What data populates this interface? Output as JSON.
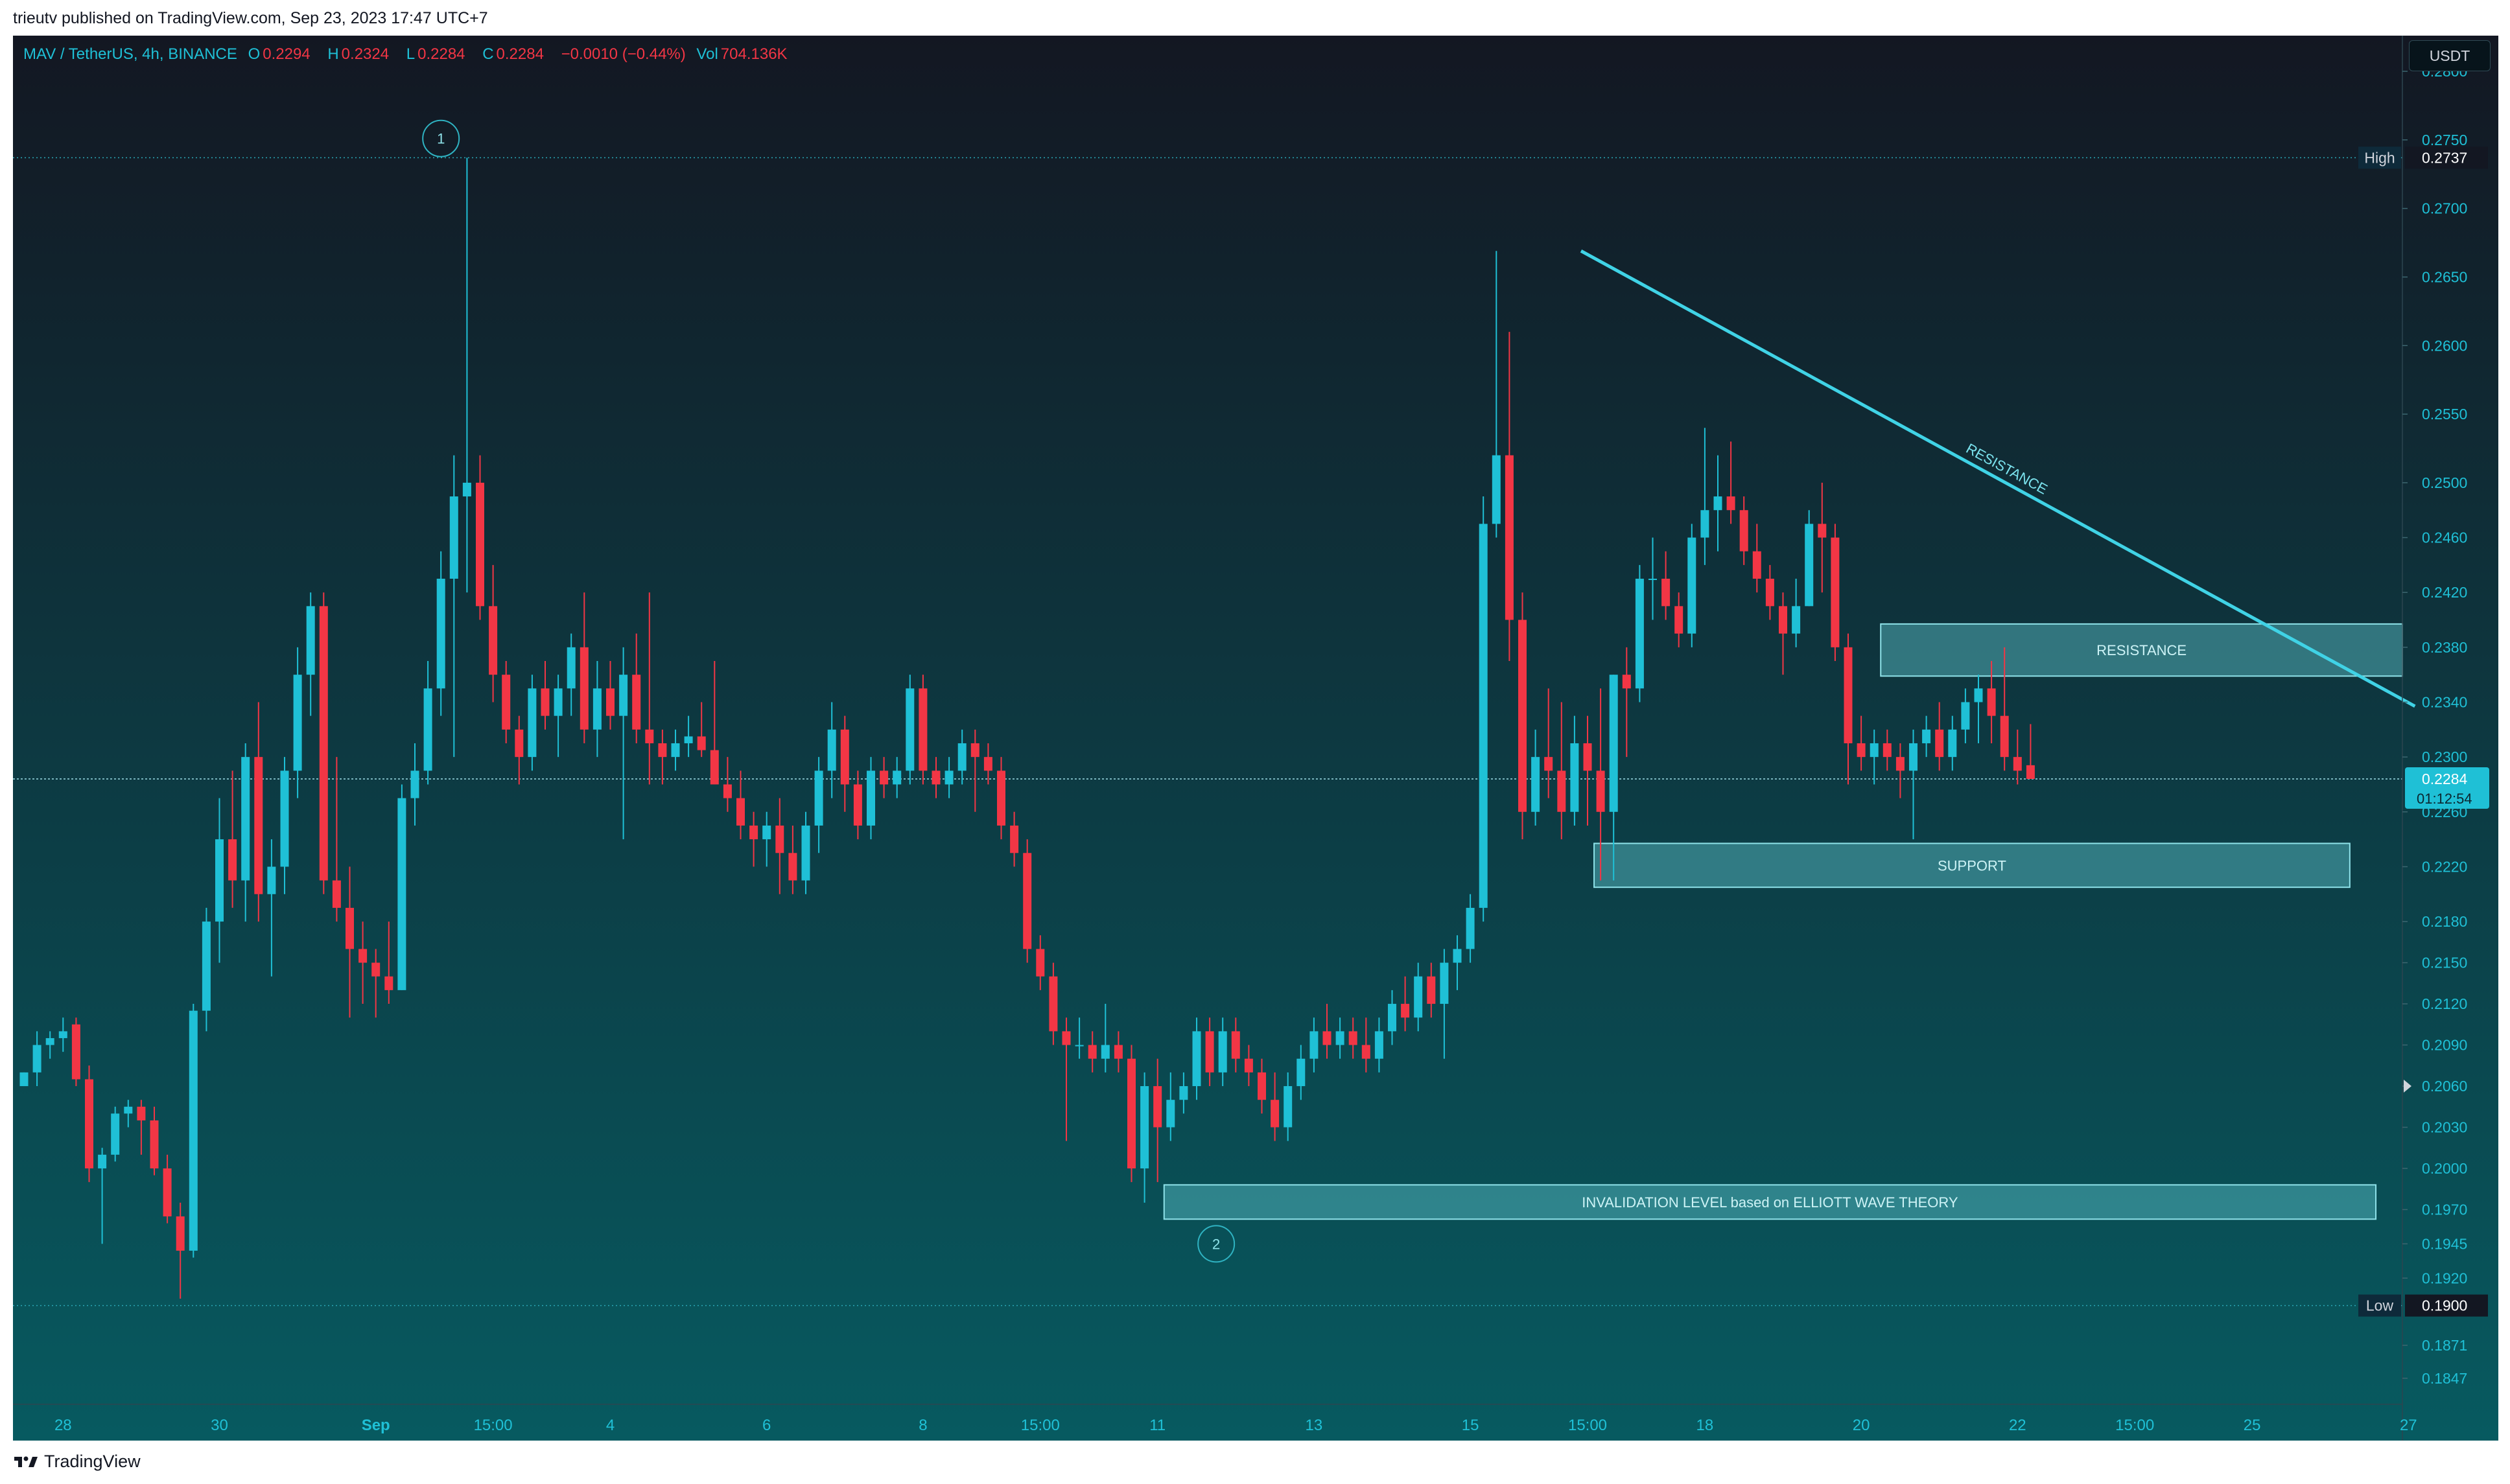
{
  "header": {
    "publisher": "trieutv published on TradingView.com, Sep 23, 2023 17:47 UTC+7"
  },
  "legend": {
    "symbol": "MAV / TetherUS, 4h, BINANCE",
    "open_label": "O",
    "open": "0.2294",
    "high_label": "H",
    "high": "0.2324",
    "low_label": "L",
    "low": "0.2284",
    "close_label": "C",
    "close": "0.2284",
    "change": "−0.0010 (−0.44%)",
    "vol_label": "Vol",
    "volume": "704.136K"
  },
  "currency_button": "USDT",
  "footer": {
    "brand": "TradingView"
  },
  "colors": {
    "up": "#1fc0d6",
    "down": "#f23645",
    "line": "#40d3e6",
    "zone_fill": "#5fc6cf",
    "bg_top": "#131722",
    "bg_bottom": "#075a60"
  },
  "chart_data": {
    "type": "candlestick",
    "timeframe": "4h",
    "ylim": [
      0.1828,
      0.2826
    ],
    "y_ticks": [
      "0.2800",
      "0.2750",
      "0.2700",
      "0.2650",
      "0.2600",
      "0.2550",
      "0.2500",
      "0.2460",
      "0.2420",
      "0.2380",
      "0.2340",
      "0.2300",
      "0.2260",
      "0.2220",
      "0.2180",
      "0.2150",
      "0.2120",
      "0.2090",
      "0.2060",
      "0.2030",
      "0.2000",
      "0.1970",
      "0.1945",
      "0.1920",
      "0.1871",
      "0.1847"
    ],
    "x_ticks": [
      {
        "label": "28",
        "bar": 3
      },
      {
        "label": "30",
        "bar": 15
      },
      {
        "label": "Sep",
        "bar": 27
      },
      {
        "label": "15:00",
        "bar": 36
      },
      {
        "label": "4",
        "bar": 45
      },
      {
        "label": "6",
        "bar": 57
      },
      {
        "label": "8",
        "bar": 69
      },
      {
        "label": "15:00",
        "bar": 78
      },
      {
        "label": "11",
        "bar": 87
      },
      {
        "label": "13",
        "bar": 99
      },
      {
        "label": "15",
        "bar": 111
      },
      {
        "label": "15:00",
        "bar": 120
      },
      {
        "label": "18",
        "bar": 129
      },
      {
        "label": "20",
        "bar": 141
      },
      {
        "label": "22",
        "bar": 153
      },
      {
        "label": "15:00",
        "bar": 162
      },
      {
        "label": "25",
        "bar": 171
      },
      {
        "label": "27",
        "bar": 183
      }
    ],
    "high_marker": {
      "label": "High",
      "value": 0.2737
    },
    "low_marker": {
      "label": "Low",
      "value": 0.19
    },
    "last_price": {
      "value": 0.2284,
      "label": "0.2284",
      "countdown": "01:12:54"
    },
    "annotations": {
      "trendline": {
        "start_bar": 119.5,
        "start_price": 0.2669,
        "end_bar": 183.5,
        "end_price": 0.2337,
        "label": "RESISTANCE"
      },
      "zones": [
        {
          "label": "RESISTANCE",
          "from_bar": 142.5,
          "to_bar": 185,
          "top": 0.2397,
          "bottom": 0.2359
        },
        {
          "label": "SUPPORT",
          "from_bar": 120.5,
          "to_bar": 178.5,
          "top": 0.2237,
          "bottom": 0.2205
        },
        {
          "label": "INVALIDATION LEVEL based on ELLIOTT WAVE THEORY",
          "from_bar": 87.5,
          "to_bar": 180.5,
          "top": 0.1988,
          "bottom": 0.1963
        }
      ],
      "wave_labels": [
        {
          "label": "1",
          "bar": 32,
          "price": 0.2751
        },
        {
          "label": "2",
          "bar": 91.5,
          "price": 0.1945
        }
      ]
    },
    "candles": [
      [
        0.206,
        0.207,
        0.206,
        0.207
      ],
      [
        0.207,
        0.21,
        0.206,
        0.209
      ],
      [
        0.209,
        0.21,
        0.208,
        0.2095
      ],
      [
        0.2095,
        0.211,
        0.2085,
        0.21
      ],
      [
        0.2105,
        0.211,
        0.206,
        0.2065
      ],
      [
        0.2065,
        0.2075,
        0.199,
        0.2
      ],
      [
        0.2,
        0.2015,
        0.1945,
        0.201
      ],
      [
        0.201,
        0.2045,
        0.2005,
        0.204
      ],
      [
        0.204,
        0.205,
        0.203,
        0.2045
      ],
      [
        0.2045,
        0.205,
        0.201,
        0.2035
      ],
      [
        0.2035,
        0.2045,
        0.1995,
        0.2
      ],
      [
        0.2,
        0.201,
        0.196,
        0.1965
      ],
      [
        0.1965,
        0.1975,
        0.1905,
        0.194
      ],
      [
        0.194,
        0.212,
        0.1935,
        0.2115
      ],
      [
        0.2115,
        0.219,
        0.21,
        0.218
      ],
      [
        0.218,
        0.227,
        0.215,
        0.224
      ],
      [
        0.224,
        0.229,
        0.219,
        0.221
      ],
      [
        0.221,
        0.231,
        0.218,
        0.23
      ],
      [
        0.23,
        0.234,
        0.218,
        0.22
      ],
      [
        0.22,
        0.224,
        0.214,
        0.222
      ],
      [
        0.222,
        0.23,
        0.22,
        0.229
      ],
      [
        0.229,
        0.238,
        0.227,
        0.236
      ],
      [
        0.236,
        0.242,
        0.233,
        0.241
      ],
      [
        0.241,
        0.242,
        0.22,
        0.221
      ],
      [
        0.221,
        0.23,
        0.218,
        0.219
      ],
      [
        0.219,
        0.222,
        0.211,
        0.216
      ],
      [
        0.216,
        0.218,
        0.212,
        0.215
      ],
      [
        0.215,
        0.216,
        0.211,
        0.214
      ],
      [
        0.214,
        0.218,
        0.212,
        0.213
      ],
      [
        0.213,
        0.228,
        0.213,
        0.227
      ],
      [
        0.227,
        0.231,
        0.225,
        0.229
      ],
      [
        0.229,
        0.237,
        0.228,
        0.235
      ],
      [
        0.235,
        0.245,
        0.233,
        0.243
      ],
      [
        0.243,
        0.252,
        0.23,
        0.249
      ],
      [
        0.249,
        0.2737,
        0.242,
        0.25
      ],
      [
        0.25,
        0.252,
        0.24,
        0.241
      ],
      [
        0.241,
        0.244,
        0.234,
        0.236
      ],
      [
        0.236,
        0.237,
        0.231,
        0.232
      ],
      [
        0.232,
        0.233,
        0.228,
        0.23
      ],
      [
        0.23,
        0.236,
        0.229,
        0.235
      ],
      [
        0.235,
        0.237,
        0.232,
        0.233
      ],
      [
        0.233,
        0.236,
        0.23,
        0.235
      ],
      [
        0.235,
        0.239,
        0.233,
        0.238
      ],
      [
        0.238,
        0.242,
        0.231,
        0.232
      ],
      [
        0.232,
        0.237,
        0.23,
        0.235
      ],
      [
        0.235,
        0.237,
        0.232,
        0.233
      ],
      [
        0.233,
        0.238,
        0.224,
        0.236
      ],
      [
        0.236,
        0.239,
        0.231,
        0.232
      ],
      [
        0.232,
        0.242,
        0.228,
        0.231
      ],
      [
        0.231,
        0.232,
        0.228,
        0.23
      ],
      [
        0.23,
        0.232,
        0.229,
        0.231
      ],
      [
        0.231,
        0.233,
        0.23,
        0.2315
      ],
      [
        0.2315,
        0.234,
        0.23,
        0.2305
      ],
      [
        0.2305,
        0.237,
        0.228,
        0.228
      ],
      [
        0.228,
        0.23,
        0.226,
        0.227
      ],
      [
        0.227,
        0.229,
        0.224,
        0.225
      ],
      [
        0.225,
        0.226,
        0.222,
        0.224
      ],
      [
        0.224,
        0.226,
        0.222,
        0.225
      ],
      [
        0.225,
        0.227,
        0.22,
        0.223
      ],
      [
        0.223,
        0.225,
        0.22,
        0.221
      ],
      [
        0.221,
        0.226,
        0.22,
        0.225
      ],
      [
        0.225,
        0.23,
        0.223,
        0.229
      ],
      [
        0.229,
        0.234,
        0.227,
        0.232
      ],
      [
        0.232,
        0.233,
        0.226,
        0.228
      ],
      [
        0.228,
        0.229,
        0.224,
        0.225
      ],
      [
        0.225,
        0.23,
        0.224,
        0.229
      ],
      [
        0.229,
        0.23,
        0.227,
        0.228
      ],
      [
        0.228,
        0.23,
        0.227,
        0.229
      ],
      [
        0.229,
        0.236,
        0.228,
        0.235
      ],
      [
        0.235,
        0.236,
        0.228,
        0.229
      ],
      [
        0.229,
        0.23,
        0.227,
        0.228
      ],
      [
        0.228,
        0.23,
        0.227,
        0.229
      ],
      [
        0.229,
        0.232,
        0.228,
        0.231
      ],
      [
        0.231,
        0.232,
        0.226,
        0.23
      ],
      [
        0.23,
        0.231,
        0.228,
        0.229
      ],
      [
        0.229,
        0.23,
        0.224,
        0.225
      ],
      [
        0.225,
        0.226,
        0.222,
        0.223
      ],
      [
        0.223,
        0.224,
        0.215,
        0.216
      ],
      [
        0.216,
        0.217,
        0.213,
        0.214
      ],
      [
        0.214,
        0.215,
        0.209,
        0.21
      ],
      [
        0.21,
        0.211,
        0.202,
        0.209
      ],
      [
        0.209,
        0.211,
        0.208,
        0.209
      ],
      [
        0.209,
        0.21,
        0.207,
        0.208
      ],
      [
        0.208,
        0.212,
        0.207,
        0.209
      ],
      [
        0.209,
        0.21,
        0.207,
        0.208
      ],
      [
        0.208,
        0.209,
        0.199,
        0.2
      ],
      [
        0.2,
        0.207,
        0.1975,
        0.206
      ],
      [
        0.206,
        0.208,
        0.199,
        0.203
      ],
      [
        0.203,
        0.207,
        0.202,
        0.205
      ],
      [
        0.205,
        0.207,
        0.204,
        0.206
      ],
      [
        0.206,
        0.211,
        0.205,
        0.21
      ],
      [
        0.21,
        0.211,
        0.206,
        0.207
      ],
      [
        0.207,
        0.211,
        0.206,
        0.21
      ],
      [
        0.21,
        0.211,
        0.207,
        0.208
      ],
      [
        0.208,
        0.209,
        0.206,
        0.207
      ],
      [
        0.207,
        0.208,
        0.204,
        0.205
      ],
      [
        0.205,
        0.207,
        0.202,
        0.203
      ],
      [
        0.203,
        0.207,
        0.202,
        0.206
      ],
      [
        0.206,
        0.209,
        0.205,
        0.208
      ],
      [
        0.208,
        0.211,
        0.207,
        0.21
      ],
      [
        0.21,
        0.212,
        0.208,
        0.209
      ],
      [
        0.209,
        0.211,
        0.208,
        0.21
      ],
      [
        0.21,
        0.211,
        0.208,
        0.209
      ],
      [
        0.209,
        0.211,
        0.207,
        0.208
      ],
      [
        0.208,
        0.211,
        0.207,
        0.21
      ],
      [
        0.21,
        0.213,
        0.209,
        0.212
      ],
      [
        0.212,
        0.214,
        0.21,
        0.211
      ],
      [
        0.211,
        0.215,
        0.21,
        0.214
      ],
      [
        0.214,
        0.215,
        0.211,
        0.212
      ],
      [
        0.212,
        0.216,
        0.208,
        0.215
      ],
      [
        0.215,
        0.217,
        0.213,
        0.216
      ],
      [
        0.216,
        0.22,
        0.215,
        0.219
      ],
      [
        0.219,
        0.249,
        0.218,
        0.247
      ],
      [
        0.247,
        0.2669,
        0.246,
        0.252
      ],
      [
        0.252,
        0.261,
        0.237,
        0.24
      ],
      [
        0.24,
        0.242,
        0.224,
        0.226
      ],
      [
        0.226,
        0.232,
        0.225,
        0.23
      ],
      [
        0.23,
        0.235,
        0.227,
        0.229
      ],
      [
        0.229,
        0.234,
        0.224,
        0.226
      ],
      [
        0.226,
        0.233,
        0.225,
        0.231
      ],
      [
        0.231,
        0.233,
        0.225,
        0.229
      ],
      [
        0.229,
        0.235,
        0.221,
        0.226
      ],
      [
        0.226,
        0.236,
        0.221,
        0.236
      ],
      [
        0.236,
        0.238,
        0.23,
        0.235
      ],
      [
        0.235,
        0.244,
        0.234,
        0.243
      ],
      [
        0.243,
        0.246,
        0.24,
        0.243
      ],
      [
        0.243,
        0.245,
        0.24,
        0.241
      ],
      [
        0.241,
        0.242,
        0.238,
        0.239
      ],
      [
        0.239,
        0.247,
        0.238,
        0.246
      ],
      [
        0.246,
        0.254,
        0.244,
        0.248
      ],
      [
        0.248,
        0.252,
        0.245,
        0.249
      ],
      [
        0.249,
        0.253,
        0.247,
        0.248
      ],
      [
        0.248,
        0.249,
        0.244,
        0.245
      ],
      [
        0.245,
        0.247,
        0.242,
        0.243
      ],
      [
        0.243,
        0.244,
        0.24,
        0.241
      ],
      [
        0.241,
        0.242,
        0.236,
        0.239
      ],
      [
        0.239,
        0.243,
        0.238,
        0.241
      ],
      [
        0.241,
        0.248,
        0.241,
        0.247
      ],
      [
        0.247,
        0.25,
        0.242,
        0.246
      ],
      [
        0.246,
        0.247,
        0.237,
        0.238
      ],
      [
        0.238,
        0.239,
        0.228,
        0.231
      ],
      [
        0.231,
        0.233,
        0.229,
        0.23
      ],
      [
        0.23,
        0.232,
        0.228,
        0.231
      ],
      [
        0.231,
        0.232,
        0.229,
        0.23
      ],
      [
        0.23,
        0.231,
        0.227,
        0.229
      ],
      [
        0.229,
        0.232,
        0.224,
        0.231
      ],
      [
        0.231,
        0.233,
        0.23,
        0.232
      ],
      [
        0.232,
        0.234,
        0.229,
        0.23
      ],
      [
        0.23,
        0.233,
        0.229,
        0.232
      ],
      [
        0.232,
        0.235,
        0.231,
        0.234
      ],
      [
        0.234,
        0.236,
        0.231,
        0.235
      ],
      [
        0.235,
        0.237,
        0.231,
        0.233
      ],
      [
        0.233,
        0.238,
        0.229,
        0.23
      ],
      [
        0.23,
        0.232,
        0.228,
        0.229
      ],
      [
        0.2294,
        0.2324,
        0.2284,
        0.2284
      ]
    ]
  }
}
